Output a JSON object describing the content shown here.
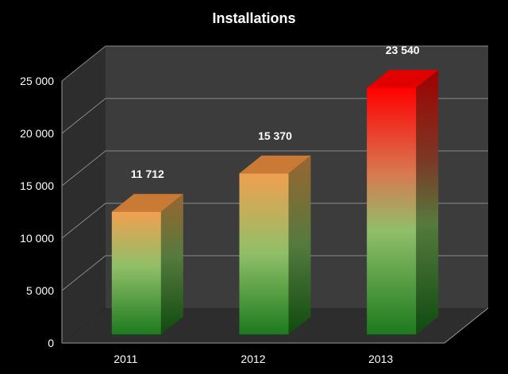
{
  "chart_data": {
    "type": "bar",
    "title": "Installations",
    "xlabel": "",
    "ylabel": "",
    "categories": [
      "2011",
      "2012",
      "2013"
    ],
    "values": [
      11712,
      15370,
      23540
    ],
    "data_labels": [
      "11 712",
      "15 370",
      "23 540"
    ],
    "y_ticks": [
      0,
      5000,
      10000,
      15000,
      20000,
      25000
    ],
    "y_tick_labels": [
      "0",
      "5 000",
      "10 000",
      "15 000",
      "20 000",
      "25 000"
    ],
    "ylim": [
      0,
      25000
    ],
    "grid": true,
    "legend": "none",
    "style": "3d",
    "colors": {
      "background": "#000000",
      "back_wall": "#3c3c3c",
      "side_wall": "#2d2d2d",
      "floor": "#2d2d2d",
      "gridline": "#8a8a8a",
      "bar_low": "#1d7a1d",
      "bar_mid": "#8fbf68",
      "bar_orange": "#f0a050",
      "bar_red": "#ff0000"
    }
  }
}
